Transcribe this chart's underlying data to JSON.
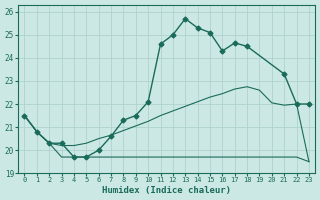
{
  "xlabel": "Humidex (Indice chaleur)",
  "bg_color": "#cce8e4",
  "grid_color": "#aacfcb",
  "line_color": "#1a6b5a",
  "xlim": [
    -0.5,
    23.5
  ],
  "ylim": [
    19,
    26.3
  ],
  "xticks": [
    0,
    1,
    2,
    3,
    4,
    5,
    6,
    7,
    8,
    9,
    10,
    11,
    12,
    13,
    14,
    15,
    16,
    17,
    18,
    19,
    20,
    21,
    22,
    23
  ],
  "yticks": [
    19,
    20,
    21,
    22,
    23,
    24,
    25,
    26
  ],
  "curve_main_x": [
    0,
    1,
    2,
    3,
    4,
    5,
    6,
    7,
    8,
    9,
    10,
    11,
    12,
    13,
    14,
    15,
    16,
    17,
    18,
    21,
    22,
    23
  ],
  "curve_main_y": [
    21.5,
    20.8,
    20.3,
    20.3,
    19.7,
    19.7,
    20.0,
    20.6,
    21.3,
    21.5,
    22.1,
    24.6,
    25.0,
    25.7,
    25.3,
    25.1,
    24.3,
    24.65,
    24.5,
    23.3,
    22.0,
    22.0
  ],
  "curve_bottom_x": [
    0,
    1,
    2,
    3,
    4,
    5,
    6,
    7,
    8,
    9,
    10,
    11,
    12,
    13,
    14,
    15,
    16,
    17,
    18,
    19,
    20,
    21,
    22,
    23
  ],
  "curve_bottom_y": [
    21.5,
    20.8,
    20.3,
    19.7,
    19.7,
    19.7,
    19.7,
    19.7,
    19.7,
    19.7,
    19.7,
    19.7,
    19.7,
    19.7,
    19.7,
    19.7,
    19.7,
    19.7,
    19.7,
    19.7,
    19.7,
    19.7,
    19.7,
    19.5
  ],
  "curve_mid_x": [
    0,
    1,
    2,
    3,
    4,
    5,
    6,
    7,
    8,
    9,
    10,
    11,
    12,
    13,
    14,
    15,
    16,
    17,
    18,
    19,
    20,
    21,
    22,
    23
  ],
  "curve_mid_y": [
    21.5,
    20.8,
    20.3,
    20.2,
    20.2,
    20.3,
    20.5,
    20.65,
    20.85,
    21.05,
    21.25,
    21.5,
    21.7,
    21.9,
    22.1,
    22.3,
    22.45,
    22.65,
    22.75,
    22.6,
    22.05,
    21.95,
    22.0,
    19.5
  ]
}
